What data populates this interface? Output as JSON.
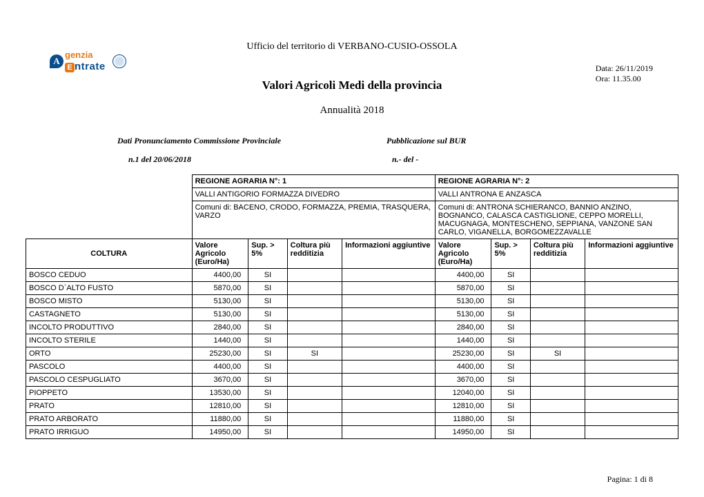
{
  "header": {
    "officeLine": "Ufficio del territorio di  VERBANO-CUSIO-OSSOLA",
    "date": "Data: 26/11/2019",
    "time": "Ora: 11.35.00",
    "title": "Valori Agricoli Medi della provincia",
    "subtitle": "Annualità  2018"
  },
  "logo": {
    "letter": "A",
    "text1": "genzia",
    "text2": "ntrate"
  },
  "meta": {
    "leftLabel": "Dati Pronunciamento Commissione Provinciale",
    "rightLabel": "Pubblicazione sul BUR",
    "leftVal": "n.1 del  20/06/2018",
    "rightVal": "n.-  del -"
  },
  "regions": {
    "r1": {
      "title": "REGIONE AGRARIA N°:  1",
      "name": "VALLI ANTIGORIO FORMAZZA DIVEDRO",
      "comuni": "Comuni di: BACENO, CRODO, FORMAZZA, PREMIA, TRASQUERA, VARZO"
    },
    "r2": {
      "title": "REGIONE AGRARIA N°: 2",
      "name": "VALLI ANTRONA E ANZASCA",
      "comuni": "Comuni di: ANTRONA SCHIERANCO, BANNIO ANZINO, BOGNANCO, CALASCA CASTIGLIONE, CEPPO MORELLI, MACUGNAGA, MONTESCHENO, SEPPIANA, VANZONE SAN CARLO, VIGANELLA, BORGOMEZZAVALLE"
    }
  },
  "columns": {
    "coltura": "COLTURA",
    "valore": "Valore Agricolo (Euro/Ha)",
    "sup": "Sup. > 5%",
    "redditizia": "Coltura più redditizia",
    "info": "Informazioni aggiuntive"
  },
  "rows": [
    {
      "coltura": "BOSCO CEDUO",
      "v1": "4400,00",
      "s1": "SI",
      "r1": "",
      "i1": "",
      "v2": "4400,00",
      "s2": "SI",
      "r2": "",
      "i2": ""
    },
    {
      "coltura": "BOSCO D`ALTO FUSTO",
      "v1": "5870,00",
      "s1": "SI",
      "r1": "",
      "i1": "",
      "v2": "5870,00",
      "s2": "SI",
      "r2": "",
      "i2": ""
    },
    {
      "coltura": "BOSCO MISTO",
      "v1": "5130,00",
      "s1": "SI",
      "r1": "",
      "i1": "",
      "v2": "5130,00",
      "s2": "SI",
      "r2": "",
      "i2": ""
    },
    {
      "coltura": "CASTAGNETO",
      "v1": "5130,00",
      "s1": "SI",
      "r1": "",
      "i1": "",
      "v2": "5130,00",
      "s2": "SI",
      "r2": "",
      "i2": ""
    },
    {
      "coltura": "INCOLTO PRODUTTIVO",
      "v1": "2840,00",
      "s1": "SI",
      "r1": "",
      "i1": "",
      "v2": "2840,00",
      "s2": "SI",
      "r2": "",
      "i2": ""
    },
    {
      "coltura": "INCOLTO STERILE",
      "v1": "1440,00",
      "s1": "SI",
      "r1": "",
      "i1": "",
      "v2": "1440,00",
      "s2": "SI",
      "r2": "",
      "i2": ""
    },
    {
      "coltura": "ORTO",
      "v1": "25230,00",
      "s1": "SI",
      "r1": "SI",
      "i1": "",
      "v2": "25230,00",
      "s2": "SI",
      "r2": "SI",
      "i2": ""
    },
    {
      "coltura": "PASCOLO",
      "v1": "4400,00",
      "s1": "SI",
      "r1": "",
      "i1": "",
      "v2": "4400,00",
      "s2": "SI",
      "r2": "",
      "i2": ""
    },
    {
      "coltura": "PASCOLO CESPUGLIATO",
      "v1": "3670,00",
      "s1": "SI",
      "r1": "",
      "i1": "",
      "v2": "3670,00",
      "s2": "SI",
      "r2": "",
      "i2": ""
    },
    {
      "coltura": "PIOPPETO",
      "v1": "13530,00",
      "s1": "SI",
      "r1": "",
      "i1": "",
      "v2": "12040,00",
      "s2": "SI",
      "r2": "",
      "i2": ""
    },
    {
      "coltura": "PRATO",
      "v1": "12810,00",
      "s1": "SI",
      "r1": "",
      "i1": "",
      "v2": "12810,00",
      "s2": "SI",
      "r2": "",
      "i2": ""
    },
    {
      "coltura": "PRATO ARBORATO",
      "v1": "11880,00",
      "s1": "SI",
      "r1": "",
      "i1": "",
      "v2": "11880,00",
      "s2": "SI",
      "r2": "",
      "i2": ""
    },
    {
      "coltura": "PRATO IRRIGUO",
      "v1": "14950,00",
      "s1": "SI",
      "r1": "",
      "i1": "",
      "v2": "14950,00",
      "s2": "SI",
      "r2": "",
      "i2": ""
    }
  ],
  "footer": {
    "page": "Pagina: 1 di 8"
  }
}
